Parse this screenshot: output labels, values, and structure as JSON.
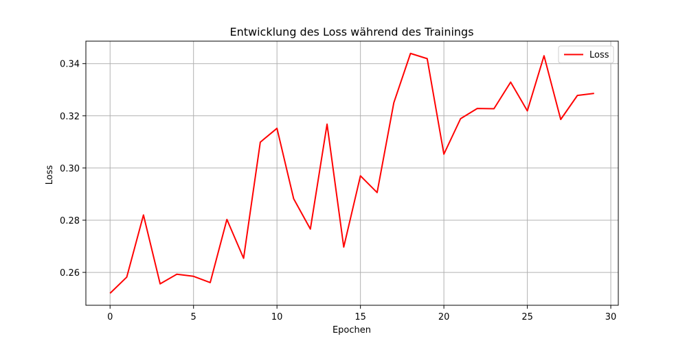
{
  "chart_data": {
    "type": "line",
    "title": "Entwicklung des Loss während des Trainings",
    "xlabel": "Epochen",
    "ylabel": "Loss",
    "xlim": [
      -1.45,
      30.45
    ],
    "ylim": [
      0.2474,
      0.3486
    ],
    "xticks": [
      0,
      5,
      10,
      15,
      20,
      25,
      30
    ],
    "yticks": [
      0.26,
      0.28,
      0.3,
      0.32,
      0.34
    ],
    "ytick_labels": [
      "0.26",
      "0.28",
      "0.30",
      "0.32",
      "0.34"
    ],
    "grid": true,
    "legend": {
      "position": "top-right"
    },
    "series": [
      {
        "name": "Loss",
        "color": "#ff0000",
        "x": [
          0,
          1,
          2,
          3,
          4,
          5,
          6,
          7,
          8,
          9,
          10,
          11,
          12,
          13,
          14,
          15,
          16,
          17,
          18,
          19,
          20,
          21,
          22,
          23,
          24,
          25,
          26,
          27,
          28,
          29
        ],
        "y": [
          0.252,
          0.2582,
          0.282,
          0.2556,
          0.2593,
          0.2585,
          0.2561,
          0.2803,
          0.2654,
          0.3099,
          0.3152,
          0.2882,
          0.2766,
          0.3168,
          0.2697,
          0.297,
          0.2906,
          0.325,
          0.3439,
          0.3419,
          0.3053,
          0.3189,
          0.3228,
          0.3227,
          0.3329,
          0.3219,
          0.343,
          0.3186,
          0.3278,
          0.3286
        ]
      }
    ]
  }
}
